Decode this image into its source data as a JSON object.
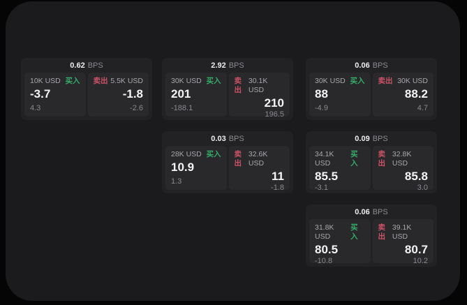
{
  "colors": {
    "page_background": "#050505",
    "window_background": "#1b1b1d",
    "card_background": "#222225",
    "panel_background": "#29292c",
    "buy_green": "#35ad68",
    "sell_red": "#cc5266",
    "primary_text": "#f4f4f4",
    "secondary_text": "#a8a8ac",
    "muted_text": "#8a8a8f"
  },
  "cards": [
    {
      "bps_value": "0.62",
      "bps_unit": "BPS",
      "buy": {
        "amount": "10K USD",
        "side_label": "买入",
        "value": "-3.7",
        "delta": "4.3"
      },
      "sell": {
        "side_label": "卖出",
        "amount": "5.5K USD",
        "value": "-1.8",
        "delta": "-2.6"
      }
    },
    {
      "bps_value": "2.92",
      "bps_unit": "BPS",
      "buy": {
        "amount": "30K USD",
        "side_label": "买入",
        "value": "201",
        "delta": "-188.1"
      },
      "sell": {
        "side_label": "卖出",
        "amount": "30.1K USD",
        "value": "210",
        "delta": "196.5"
      }
    },
    {
      "bps_value": "0.06",
      "bps_unit": "BPS",
      "buy": {
        "amount": "30K USD",
        "side_label": "买入",
        "value": "88",
        "delta": "-4.9"
      },
      "sell": {
        "side_label": "卖出",
        "amount": "30K USD",
        "value": "88.2",
        "delta": "4.7"
      }
    },
    {
      "bps_value": "0.03",
      "bps_unit": "BPS",
      "buy": {
        "amount": "28K USD",
        "side_label": "买入",
        "value": "10.9",
        "delta": "1.3"
      },
      "sell": {
        "side_label": "卖出",
        "amount": "32.6K USD",
        "value": "11",
        "delta": "-1.8"
      }
    },
    {
      "bps_value": "0.09",
      "bps_unit": "BPS",
      "buy": {
        "amount": "34.1K USD",
        "side_label": "买入",
        "value": "85.5",
        "delta": "-3.1"
      },
      "sell": {
        "side_label": "卖出",
        "amount": "32.8K USD",
        "value": "85.8",
        "delta": "3.0"
      }
    },
    {
      "bps_value": "0.06",
      "bps_unit": "BPS",
      "buy": {
        "amount": "31.8K USD",
        "side_label": "买入",
        "value": "80.5",
        "delta": "-10.8"
      },
      "sell": {
        "side_label": "卖出",
        "amount": "39.1K USD",
        "value": "80.7",
        "delta": "10.2"
      }
    }
  ]
}
